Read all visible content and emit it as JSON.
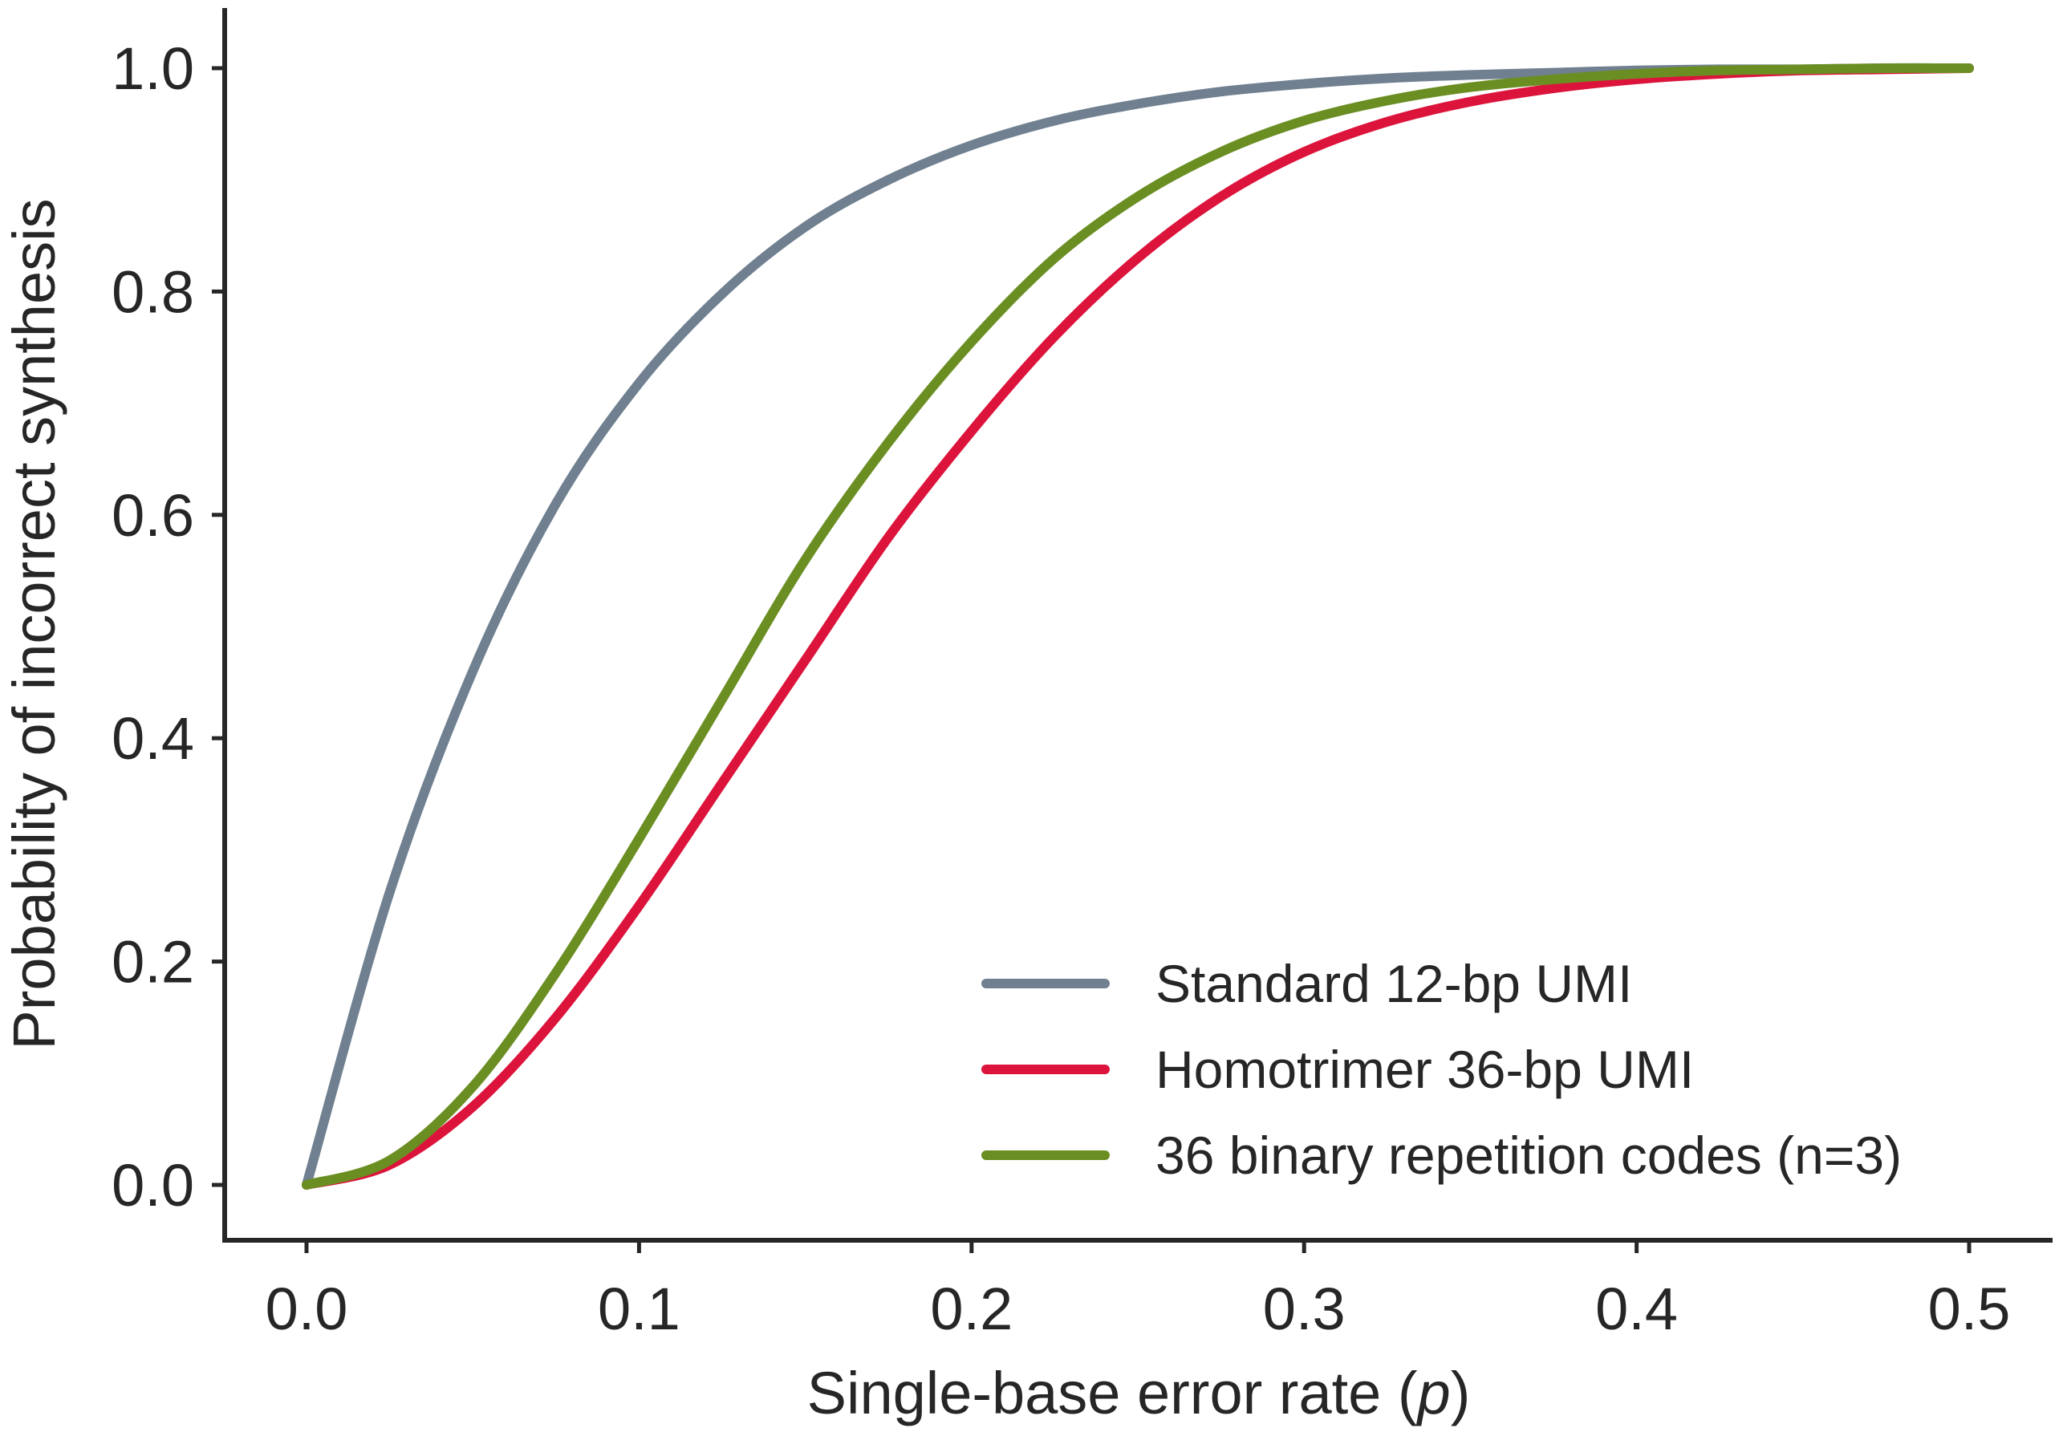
{
  "chart_data": {
    "type": "line",
    "title": "",
    "xlabel": "Single-base error rate (",
    "xlabel_var": "p",
    "xlabel_end": ")",
    "ylabel": "Probability of incorrect synthesis",
    "xlim": [
      -0.025,
      0.525
    ],
    "ylim": [
      -0.05,
      1.05
    ],
    "xticks": [
      0.0,
      0.1,
      0.2,
      0.3,
      0.4,
      0.5
    ],
    "xtick_labels": [
      "0.0",
      "0.1",
      "0.2",
      "0.3",
      "0.4",
      "0.5"
    ],
    "yticks": [
      0.0,
      0.2,
      0.4,
      0.6,
      0.8,
      1.0
    ],
    "ytick_labels": [
      "0.0",
      "0.2",
      "0.4",
      "0.6",
      "0.8",
      "1.0"
    ],
    "grid": false,
    "legend_position": "lower-right",
    "x": [
      0.0,
      0.025,
      0.05,
      0.075,
      0.1,
      0.125,
      0.15,
      0.175,
      0.2,
      0.225,
      0.25,
      0.275,
      0.3,
      0.325,
      0.35,
      0.375,
      0.4,
      0.425,
      0.45,
      0.475,
      0.5
    ],
    "series": [
      {
        "name": "Standard 12-bp UMI",
        "color": "#708090",
        "values": [
          0.0,
          0.262,
          0.46,
          0.61,
          0.718,
          0.798,
          0.858,
          0.9,
          0.931,
          0.953,
          0.968,
          0.979,
          0.986,
          0.991,
          0.994,
          0.996,
          0.998,
          0.999,
          0.999,
          1.0,
          1.0
        ]
      },
      {
        "name": "Homotrimer 36-bp UMI",
        "color": "#DC143C",
        "values": [
          0.0,
          0.018,
          0.07,
          0.15,
          0.25,
          0.36,
          0.47,
          0.58,
          0.675,
          0.76,
          0.83,
          0.885,
          0.925,
          0.952,
          0.97,
          0.982,
          0.99,
          0.995,
          0.998,
          0.999,
          1.0
        ]
      },
      {
        "name": "36 binary repetition codes (n=3)",
        "color": "#6B8E23",
        "values": [
          0.0,
          0.022,
          0.088,
          0.19,
          0.31,
          0.435,
          0.56,
          0.665,
          0.755,
          0.83,
          0.885,
          0.925,
          0.953,
          0.971,
          0.983,
          0.99,
          0.995,
          0.998,
          0.999,
          1.0,
          1.0
        ]
      }
    ]
  }
}
